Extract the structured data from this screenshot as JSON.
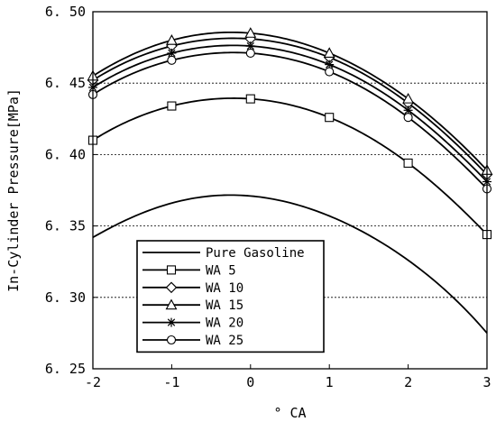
{
  "chart_data": {
    "type": "line",
    "title": "",
    "xlabel": "° CA",
    "ylabel": "In-Cylinder Pressure[MPa]",
    "xlim": [
      -2,
      3
    ],
    "ylim": [
      6.25,
      6.5
    ],
    "x_ticks": [
      -2,
      -1,
      0,
      1,
      2,
      3
    ],
    "x_tick_labels": [
      "-2",
      "-1",
      "0",
      "1",
      "2",
      "3"
    ],
    "y_ticks": [
      6.25,
      6.3,
      6.35,
      6.4,
      6.45,
      6.5
    ],
    "y_tick_labels": [
      "6. 25",
      "6. 30",
      "6. 35",
      "6. 40",
      "6. 45",
      "6. 50"
    ],
    "grid": "horizontal dashed",
    "legend_position": "bottom-left",
    "x": [
      -2,
      -1,
      0,
      1,
      2,
      3
    ],
    "series": [
      {
        "name": "Pure Gasoline",
        "marker": "none",
        "values": [
          6.342,
          6.366,
          6.371,
          6.357,
          6.326,
          6.275
        ]
      },
      {
        "name": "WA 5",
        "marker": "square",
        "values": [
          6.41,
          6.434,
          6.439,
          6.426,
          6.394,
          6.344
        ]
      },
      {
        "name": "WA 10",
        "marker": "diamond",
        "values": [
          6.452,
          6.476,
          6.481,
          6.468,
          6.436,
          6.386
        ]
      },
      {
        "name": "WA 15",
        "marker": "triangle",
        "values": [
          6.455,
          6.48,
          6.485,
          6.471,
          6.439,
          6.389
        ]
      },
      {
        "name": "WA 20",
        "marker": "asterisk",
        "values": [
          6.447,
          6.471,
          6.476,
          6.463,
          6.431,
          6.381
        ]
      },
      {
        "name": "WA 25",
        "marker": "circle",
        "values": [
          6.442,
          6.466,
          6.471,
          6.458,
          6.426,
          6.376
        ]
      }
    ]
  }
}
